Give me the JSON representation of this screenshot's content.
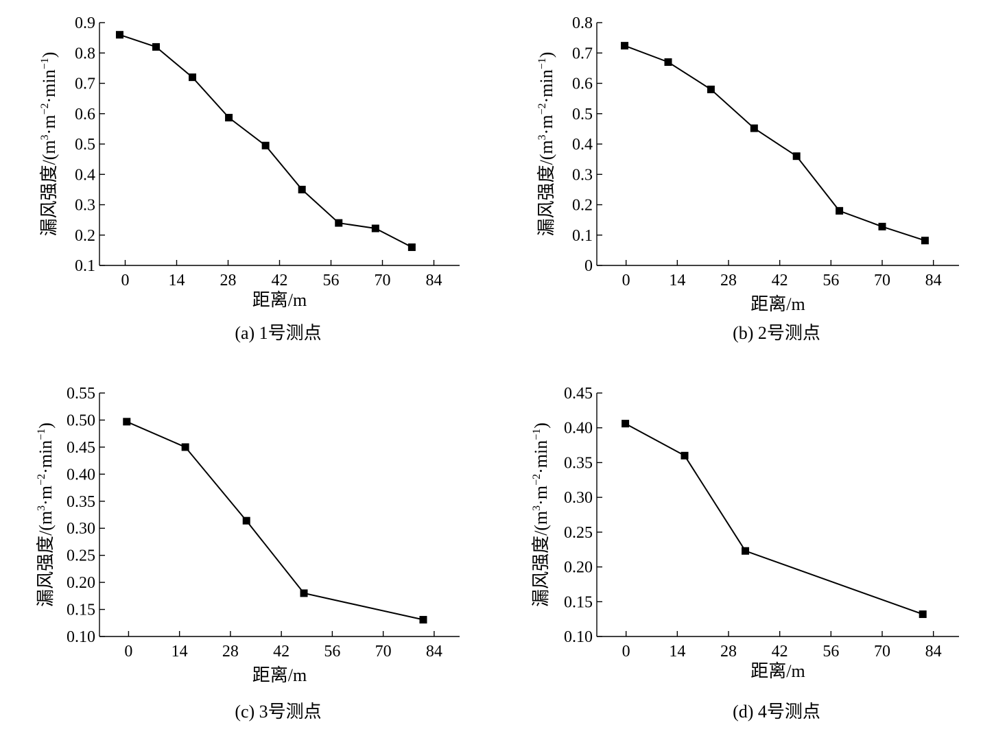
{
  "chart_data": [
    {
      "type": "line",
      "caption": "(a)  1号测点",
      "xlabel": "距离/m",
      "ylabel_main": "漏风强度/(m",
      "ylabel_sup1": "3",
      "ylabel_mid": "·m",
      "ylabel_sup2": "−2",
      "ylabel_mid2": "·min",
      "ylabel_sup3": "−1",
      "ylabel_end": ")",
      "xlim": [
        -7,
        91
      ],
      "ylim": [
        0.1,
        0.9
      ],
      "xticks": [
        0,
        14,
        28,
        42,
        56,
        70,
        84
      ],
      "yticks": [
        0.1,
        0.2,
        0.3,
        0.4,
        0.5,
        0.6,
        0.7,
        0.8,
        0.9
      ],
      "ytick_labels": [
        "0.1",
        "0.2",
        "0.3",
        "0.4",
        "0.5",
        "0.6",
        "0.7",
        "0.8",
        "0.9"
      ],
      "marker": "square",
      "series": [
        {
          "x": [
            -1.5,
            8.4,
            18.3,
            28.2,
            38.2,
            48.1,
            58.1,
            68.1,
            78.0
          ],
          "y": [
            0.86,
            0.82,
            0.72,
            0.587,
            0.495,
            0.35,
            0.24,
            0.222,
            0.16
          ]
        }
      ]
    },
    {
      "type": "line",
      "caption": "(b)  2号测点",
      "xlabel": "距离/m",
      "ylabel_main": "漏风强度/(m",
      "ylabel_sup1": "3",
      "ylabel_mid": "·m",
      "ylabel_sup2": "−2",
      "ylabel_mid2": "·min",
      "ylabel_sup3": "−1",
      "ylabel_end": ")",
      "xlim": [
        -8,
        91
      ],
      "ylim": [
        0,
        0.8
      ],
      "xticks": [
        0,
        14,
        28,
        42,
        56,
        70,
        84
      ],
      "yticks": [
        0,
        0.1,
        0.2,
        0.3,
        0.4,
        0.5,
        0.6,
        0.7,
        0.8
      ],
      "ytick_labels": [
        "0",
        "0.1",
        "0.2",
        "0.3",
        "0.4",
        "0.5",
        "0.6",
        "0.7",
        "0.8"
      ],
      "marker": "square",
      "series": [
        {
          "x": [
            -0.4,
            11.5,
            23.2,
            35.0,
            46.6,
            58.3,
            70.0,
            81.7
          ],
          "y": [
            0.724,
            0.67,
            0.58,
            0.452,
            0.36,
            0.18,
            0.128,
            0.082
          ]
        }
      ]
    },
    {
      "type": "line",
      "caption": "(c)  3号测点",
      "xlabel": "距离/m",
      "ylabel_main": "漏风强度/(m",
      "ylabel_sup1": "3",
      "ylabel_mid": "·m",
      "ylabel_sup2": "−2",
      "ylabel_mid2": "·min",
      "ylabel_sup3": "−1",
      "ylabel_end": ")",
      "xlim": [
        -8,
        91
      ],
      "ylim": [
        0.1,
        0.55
      ],
      "xticks": [
        0,
        14,
        28,
        42,
        56,
        70,
        84
      ],
      "yticks": [
        0.1,
        0.15,
        0.2,
        0.25,
        0.3,
        0.35,
        0.4,
        0.45,
        0.5,
        0.55
      ],
      "ytick_labels": [
        "0.10",
        "0.15",
        "0.20",
        "0.25",
        "0.30",
        "0.35",
        "0.40",
        "0.45",
        "0.50",
        "0.55"
      ],
      "marker": "square",
      "series": [
        {
          "x": [
            -0.5,
            15.6,
            32.4,
            48.2,
            81.0
          ],
          "y": [
            0.497,
            0.45,
            0.314,
            0.18,
            0.131
          ]
        }
      ]
    },
    {
      "type": "line",
      "caption": "(d)  4号测点",
      "xlabel": "距离/m",
      "ylabel_main": "漏风强度/(m",
      "ylabel_sup1": "3",
      "ylabel_mid": "·m",
      "ylabel_sup2": "−2",
      "ylabel_mid2": "·min",
      "ylabel_sup3": "−1",
      "ylabel_end": ")",
      "xlim": [
        -8,
        91
      ],
      "ylim": [
        0.1,
        0.45
      ],
      "xticks": [
        0,
        14,
        28,
        42,
        56,
        70,
        84
      ],
      "yticks": [
        0.1,
        0.15,
        0.2,
        0.25,
        0.3,
        0.35,
        0.4,
        0.45
      ],
      "ytick_labels": [
        "0.10",
        "0.15",
        "0.20",
        "0.25",
        "0.30",
        "0.35",
        "0.40",
        "0.45"
      ],
      "marker": "square",
      "series": [
        {
          "x": [
            -0.2,
            16.0,
            32.6,
            81.1
          ],
          "y": [
            0.406,
            0.36,
            0.223,
            0.132
          ]
        }
      ]
    }
  ]
}
